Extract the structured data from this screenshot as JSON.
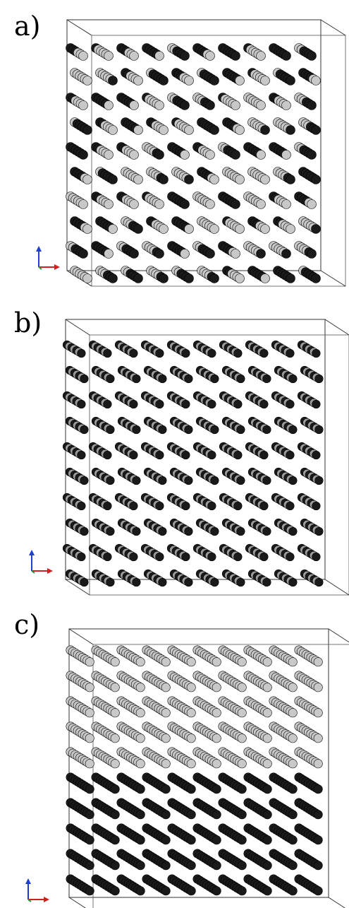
{
  "panels": [
    {
      "label": "a)",
      "pattern": "mixed-random"
    },
    {
      "label": "b)",
      "pattern": "alternating-short"
    },
    {
      "label": "c)",
      "pattern": "phase-separated"
    }
  ],
  "rows_per_panel": 10,
  "rods_per_row": 10,
  "colors": {
    "light_particle": "#c8c8c8",
    "dark_particle": "#1a1a1a",
    "box_line": "#333333",
    "axis_z": "#1f3fd1",
    "axis_x": "#d11f1f",
    "axis_y": "#1a9a3a"
  },
  "axes_icon": "xyz-axes-icon"
}
